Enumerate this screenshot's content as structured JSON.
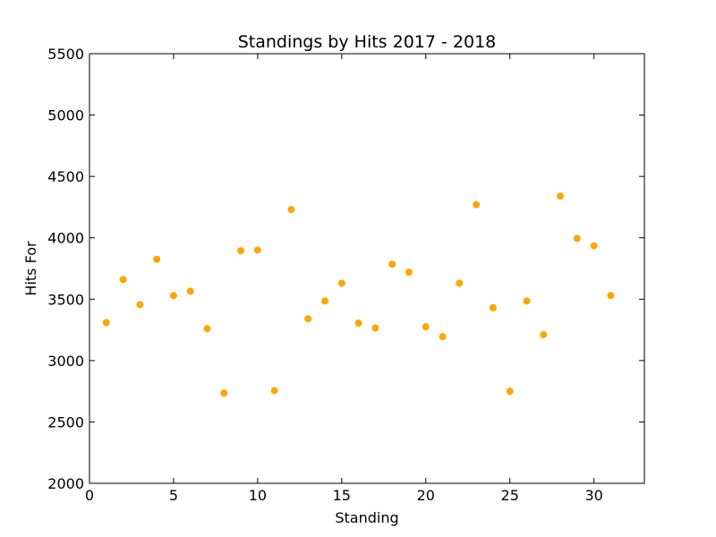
{
  "chart_data": {
    "type": "scatter",
    "title": "Standings by Hits 2017 - 2018",
    "xlabel": "Standing",
    "ylabel": "Hits For",
    "xlim": [
      0,
      33
    ],
    "ylim": [
      2000,
      5500
    ],
    "xticks": [
      0,
      5,
      10,
      15,
      20,
      25,
      30
    ],
    "yticks": [
      2000,
      2500,
      3000,
      3500,
      4000,
      4500,
      5000,
      5500
    ],
    "grid": false,
    "marker_color": "#ffa500",
    "points": [
      {
        "x": 1,
        "y": 3310
      },
      {
        "x": 2,
        "y": 3660
      },
      {
        "x": 3,
        "y": 3455
      },
      {
        "x": 4,
        "y": 3825
      },
      {
        "x": 5,
        "y": 3530
      },
      {
        "x": 6,
        "y": 3565
      },
      {
        "x": 7,
        "y": 3260
      },
      {
        "x": 8,
        "y": 2735
      },
      {
        "x": 9,
        "y": 3895
      },
      {
        "x": 10,
        "y": 3900
      },
      {
        "x": 11,
        "y": 2755
      },
      {
        "x": 12,
        "y": 4230
      },
      {
        "x": 13,
        "y": 3340
      },
      {
        "x": 14,
        "y": 3485
      },
      {
        "x": 15,
        "y": 3630
      },
      {
        "x": 16,
        "y": 3305
      },
      {
        "x": 17,
        "y": 3265
      },
      {
        "x": 18,
        "y": 3785
      },
      {
        "x": 19,
        "y": 3720
      },
      {
        "x": 20,
        "y": 3275
      },
      {
        "x": 21,
        "y": 3195
      },
      {
        "x": 22,
        "y": 3630
      },
      {
        "x": 23,
        "y": 4270
      },
      {
        "x": 24,
        "y": 3430
      },
      {
        "x": 25,
        "y": 2750
      },
      {
        "x": 26,
        "y": 3485
      },
      {
        "x": 27,
        "y": 3210
      },
      {
        "x": 28,
        "y": 4340
      },
      {
        "x": 29,
        "y": 3995
      },
      {
        "x": 30,
        "y": 3935
      },
      {
        "x": 31,
        "y": 3530
      }
    ]
  }
}
